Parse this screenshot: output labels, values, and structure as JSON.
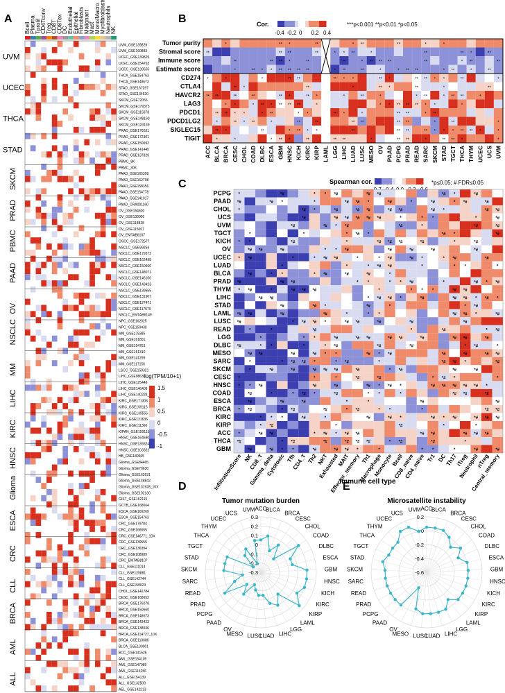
{
  "panels": {
    "A": "A",
    "B": "B",
    "C": "C",
    "D": "D",
    "E": "E"
  },
  "colors": {
    "neg_strong": "#3b3fb0",
    "neg_mid": "#8d92d8",
    "neg_light": "#d9dbf1",
    "pos_light": "#f6d3c7",
    "pos_mid": "#ef8a6a",
    "pos_strong": "#d7301f",
    "radar_line": "#3bb5c9"
  },
  "chart_data": [
    {
      "type": "heatmap",
      "panel": "A",
      "columns": [
        "Bcell",
        "Plasma",
        "Tprolif",
        "CD4Tconv",
        "Treg",
        "CD8T",
        "CD8Tex",
        "DC",
        "Endothelial",
        "Epithelial",
        "Fibroblasts",
        "Malignant",
        "Mast",
        "Mono/Macro",
        "Myofibroblasts",
        "Neutrophils",
        "NK"
      ],
      "groups": [
        "UVM",
        "UCEC",
        "THCA",
        "STAD",
        "SKCM",
        "PRAD",
        "PBMC",
        "PAAD",
        "OV",
        "NSCLC",
        "MM",
        "LIHC",
        "KIRC",
        "HNSC",
        "Glioma",
        "ESCA",
        "CRC",
        "CLL",
        "BRCA",
        "AML",
        "ALL"
      ],
      "datasets": [
        "UVM_GSE139829",
        "UVM_GSE160883",
        "UCEC_GSE139829",
        "UCEC_GSE154763",
        "UCEC_GSE139555",
        "THCA_GSE154763",
        "THCA_GSE148673",
        "STAD_GSE167297",
        "STAD_GSE134520",
        "SKCM_GSE72056",
        "SKCM_GSE179373",
        "SKCM_GSE115978",
        "SKCM_GSE148190",
        "SKCM_GSE123139",
        "PRAD_GSE176031",
        "PRAD_GSE172301",
        "PRAD_GSE150692",
        "PRAD_GSE141445",
        "PRAD_GSE137829",
        "PBMC_8K",
        "PBMC_30K",
        "PAAD_GSE165399",
        "PAAD_GSE162708",
        "PAAD_GSE158356",
        "PAAD_GSE154778",
        "PAAD_GSE141017",
        "PAAD_CRA001160",
        "OV_GSE154600",
        "OV_GSE130000",
        "OV_GSE118828",
        "OV_GSE115007",
        "OV_EMTAB8107",
        "OSCC_GSE172577",
        "NSCLC_GSE99254",
        "NSCLC_GSE179373",
        "NSCLC_GSE162498",
        "NSCLC_GSE150660",
        "NSCLC_GSE148071",
        "NSCLC_GSE146100",
        "NSCLC_GSE143423",
        "NSCLC_GSE139555",
        "NSCLC_GSE131907",
        "NSCLC_GSE127471",
        "NSCLC_GSE117570",
        "NSCLC_EMTAB6149",
        "NPC_GSE162025",
        "NPC_GSE150430",
        "MM_GSE175385",
        "MM_GSE161801",
        "MM_GSE154763",
        "MM_GSE151310",
        "MM_GSE141299",
        "MM_GSE117156",
        "LSCC_GSE150321",
        "LIHC_GSE98638",
        "LIHC_GSE125449",
        "LIHC_GSE146409",
        "LIHC_GSE140228_10X",
        "KIRC_GSE171306",
        "KIRC_GSE159115",
        "KIRC_GSE139555",
        "KIRC_GSE121636",
        "KIRC_GSE111360",
        "KIPAN_GSE159115",
        "HNSC_GSE164690",
        "HNSC_GSE139324",
        "HNSC_GSE103322",
        "HB_GSE180665",
        "Glioma_GSE84465",
        "Glioma_GSE70630",
        "Glioma_GSE162631",
        "Glioma_GSE148842",
        "Glioma_GSE131928_10X",
        "Glioma_GSE102130",
        "GIST_GSE162115",
        "GCTB_GSE168664",
        "ESCA_GSE160269",
        "ESCA_GSE154763",
        "CRC_GSE179784",
        "CRC_GSE166555",
        "CRC_GSE146771_10X",
        "CRC_GSE139555",
        "CRC_GSE136394",
        "CRC_GSE108989",
        "CRC_EMTAB8107",
        "CLL_GSE111014",
        "CLL_GSE125881",
        "CLL_GSE142744",
        "CLL_GSE150023",
        "CHOL_GSE142784",
        "CESC_GSE168652",
        "BRCA_GSE176078",
        "BRCA_GSE150660",
        "BRCA_GSE148673",
        "BRCA_GSE143423",
        "BRCA_GSE138536",
        "BRCA_GSE114727_10X",
        "BRCA_GSE110686",
        "BLCA_GSE130001",
        "BCC_GSE141526",
        "AML_GSE154109",
        "AML_GSE147989",
        "AML_GSE116256",
        "ALL_GSE154139",
        "ALL_GSE132509",
        "AEL_GSE142213"
      ],
      "colorbar": {
        "title": "log(TPM/10+1)",
        "ticks": [
          "1.5",
          "1",
          "0.5",
          "0",
          "-0.5",
          "-1"
        ]
      }
    },
    {
      "type": "heatmap",
      "panel": "B",
      "legend_title": "Cor.",
      "legend_ticks": [
        "-0.4",
        "-0.2",
        "0",
        "0.2",
        "0.4"
      ],
      "significance_note": "***p<0.001 **p<0.01 *p<0.05",
      "rows": [
        "Tumor purity",
        "Stromal score",
        "Immune score",
        "Estimate score",
        "CD274",
        "CTLA4",
        "HAVCR2",
        "LAG3",
        "PDCD1",
        "PDCD1LG2",
        "SIGLEC15",
        "TIGIT"
      ],
      "columns": [
        "ACC",
        "BLCA",
        "BRCA",
        "CESC",
        "CHOL",
        "COAD",
        "DLBC",
        "ESCA",
        "GBM",
        "HNSC",
        "KICH",
        "KIRC",
        "KIRP",
        "LAML",
        "LGG",
        "LIHC",
        "LUAD",
        "LUSC",
        "MESO",
        "OV",
        "PAAD",
        "PCPG",
        "PRAD",
        "READ",
        "SARC",
        "SKCM",
        "STAD",
        "TGCT",
        "THCA",
        "THYM",
        "UCEC",
        "UCS",
        "UVM"
      ],
      "missing_column": "LAML"
    },
    {
      "type": "heatmap",
      "panel": "C",
      "legend_title": "Spearman cor.",
      "legend_ticks": [
        "-0.7",
        "-0.4",
        "0.0",
        "0.3",
        "0.6"
      ],
      "significance_note": "*p≤0.05; # FDR≤0.05",
      "xlabel": "Immune cell type",
      "rows": [
        "PCPG",
        "PAAD",
        "CHOL",
        "UCS",
        "UVM",
        "TGCT",
        "KICH",
        "OV",
        "UCEC",
        "LUAD",
        "BLCA",
        "PRAD",
        "THYM",
        "LIHC",
        "STAD",
        "LAML",
        "LUSC",
        "READ",
        "LGG",
        "DLBC",
        "MESO",
        "SARC",
        "SKCM",
        "CESC",
        "HNSC",
        "COAD",
        "ESCA",
        "BRCA",
        "KIRC",
        "KIRP",
        "ACC",
        "THCA",
        "GBM"
      ],
      "columns": [
        "InfiltrationScore",
        "NK",
        "CD8_T",
        "Gamma_delta",
        "Cytotoxic",
        "Tfh",
        "CD4_T",
        "Th2",
        "NKT",
        "Exhausted",
        "MAIT",
        "Effector_memory",
        "Th1",
        "Macrophage",
        "Monocyte",
        "Bcell",
        "CD8_naive",
        "CD4_naive",
        "Tr1",
        "DC",
        "Th17",
        "iTreg",
        "Neutrophil",
        "nTreg",
        "Central_memory"
      ]
    },
    {
      "type": "line",
      "panel": "D",
      "polar": true,
      "title": "Tumor mutation burden",
      "rlim": [
        -0.3,
        0.3
      ],
      "rticks": [
        "0.3",
        "0.2",
        "0.1",
        "0",
        "-0.1",
        "-0.2",
        "-0.3"
      ],
      "categories": [
        "ACC",
        "BLCA",
        "BRCA",
        "CESC",
        "CHOL",
        "COAD",
        "DLBC",
        "ESCA",
        "GBM",
        "HNSC",
        "KICH",
        "KIRC",
        "KIRP",
        "LAML",
        "LGG",
        "LIHC",
        "LUAD",
        "LUSC",
        "MESO",
        "OV",
        "PAAD",
        "PCPG",
        "PRAD",
        "READ",
        "SARC",
        "SKCM",
        "STAD",
        "TGCT",
        "THCA",
        "THYM",
        "UCEC",
        "UCS",
        "UVM"
      ],
      "values": [
        0.05,
        0.1,
        -0.05,
        0.05,
        -0.1,
        0.2,
        0.05,
        0.05,
        0.2,
        0.2,
        0.2,
        0.15,
        0.25,
        0.0,
        0.1,
        0.05,
        -0.05,
        -0.05,
        -0.1,
        -0.15,
        0.0,
        -0.1,
        0.15,
        0.0,
        -0.1,
        0.1,
        0.1,
        0.1,
        -0.2,
        -0.05,
        0.0,
        -0.2,
        0.05
      ]
    },
    {
      "type": "line",
      "panel": "E",
      "polar": true,
      "title": "Microsatellite instability",
      "rlim": [
        -0.6,
        0.2
      ],
      "rticks": [
        "0.2",
        "0",
        "-0.2",
        "-0.4",
        "-0.6"
      ],
      "categories": [
        "ACC",
        "BLCA",
        "BRCA",
        "CESC",
        "CHOL",
        "COAD",
        "DLBC",
        "ESCA",
        "GBM",
        "HNSC",
        "KICH",
        "KIRC",
        "KIRP",
        "LAML",
        "LGG",
        "LIHC",
        "LUAD",
        "LUSC",
        "MESO",
        "OV",
        "PAAD",
        "PCPG",
        "PRAD",
        "READ",
        "SARC",
        "SKCM",
        "STAD",
        "TGCT",
        "THCA",
        "THYM",
        "UCEC",
        "UCS",
        "UVM"
      ],
      "values": [
        0.05,
        0.05,
        0.05,
        0.0,
        -0.1,
        0.0,
        -0.1,
        0.0,
        0.0,
        0.0,
        0.0,
        0.0,
        0.0,
        -0.1,
        0.0,
        0.0,
        0.0,
        0.0,
        -0.05,
        -0.35,
        0.0,
        0.0,
        0.0,
        0.0,
        0.0,
        0.0,
        0.05,
        0.0,
        0.0,
        0.0,
        0.1,
        0.1,
        0.0
      ]
    }
  ]
}
